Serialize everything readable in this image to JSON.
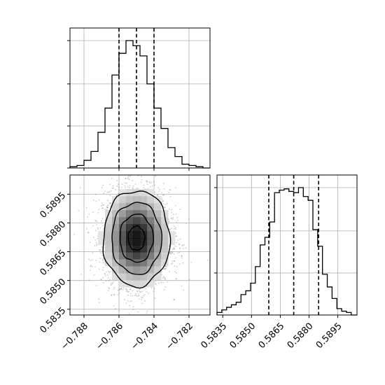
{
  "chart_data": {
    "type": "corner",
    "title": "",
    "parameters": [
      {
        "name": "",
        "median": -0.785,
        "q16": -0.786,
        "q84": -0.784,
        "range": [
          -0.7888,
          -0.7808
        ]
      },
      {
        "name": "",
        "median": 0.5872,
        "q16": 0.5859,
        "q84": 0.5885,
        "range": [
          0.5832,
          0.5905
        ]
      }
    ],
    "axes": {
      "hist_top": {
        "x_ticks": [
          -0.788,
          -0.786,
          -0.784,
          -0.782
        ],
        "y_ticks": [
          0,
          0.33,
          0.66,
          1.0
        ],
        "bins_x": [
          -0.7888,
          -0.7884,
          -0.788,
          -0.7876,
          -0.7872,
          -0.7868,
          -0.7864,
          -0.786,
          -0.7856,
          -0.7852,
          -0.7848,
          -0.7844,
          -0.784,
          -0.7836,
          -0.7832,
          -0.7828,
          -0.7824,
          -0.782,
          -0.7816,
          -0.7812,
          -0.7808
        ],
        "counts": [
          0.01,
          0.02,
          0.06,
          0.13,
          0.28,
          0.47,
          0.73,
          0.9,
          1.0,
          0.96,
          0.88,
          0.66,
          0.47,
          0.31,
          0.16,
          0.09,
          0.03,
          0.02,
          0.01,
          0.0
        ]
      },
      "hist_right": {
        "x_ticks": [
          0.5835,
          0.585,
          0.5865,
          0.588,
          0.5895
        ],
        "x_tick_labels": [
          "0.5835",
          "0.5850",
          "0.5865",
          "0.5880",
          "0.5895"
        ],
        "y_ticks": [
          0.33,
          0.66,
          1.0
        ],
        "bins_x": [
          0.5832,
          0.58345,
          0.5837,
          0.58395,
          0.5842,
          0.58445,
          0.5847,
          0.58495,
          0.5852,
          0.58545,
          0.5857,
          0.58595,
          0.5862,
          0.58645,
          0.5867,
          0.58695,
          0.5872,
          0.58745,
          0.5877,
          0.58795,
          0.5882,
          0.58845,
          0.5887,
          0.58895,
          0.5892,
          0.58945,
          0.5897,
          0.58995,
          0.5902,
          0.5905
        ],
        "counts": [
          0.02,
          0.04,
          0.06,
          0.08,
          0.1,
          0.16,
          0.19,
          0.25,
          0.38,
          0.55,
          0.61,
          0.73,
          0.96,
          0.98,
          0.99,
          0.97,
          0.96,
          1.0,
          0.93,
          0.9,
          0.67,
          0.54,
          0.32,
          0.22,
          0.13,
          0.05,
          0.03,
          0.02,
          0.0
        ]
      },
      "scatter": {
        "x_ticks": [
          -0.788,
          -0.786,
          -0.784,
          -0.782
        ],
        "x_tick_labels": [
          "−0.788",
          "−0.786",
          "−0.784",
          "−0.782"
        ],
        "y_ticks": [
          0.5835,
          0.585,
          0.5865,
          0.588,
          0.5895
        ],
        "y_tick_labels": [
          "0.5835",
          "0.5850",
          "0.5865",
          "0.5880",
          "0.5895"
        ],
        "sigma_x": 0.00095,
        "sigma_y": 0.00125,
        "contour_levels_sigma": [
          0.5,
          1.0,
          1.5,
          2.0
        ],
        "n_points": 3500
      }
    },
    "grid": true,
    "quantile_lines": "dashed"
  }
}
